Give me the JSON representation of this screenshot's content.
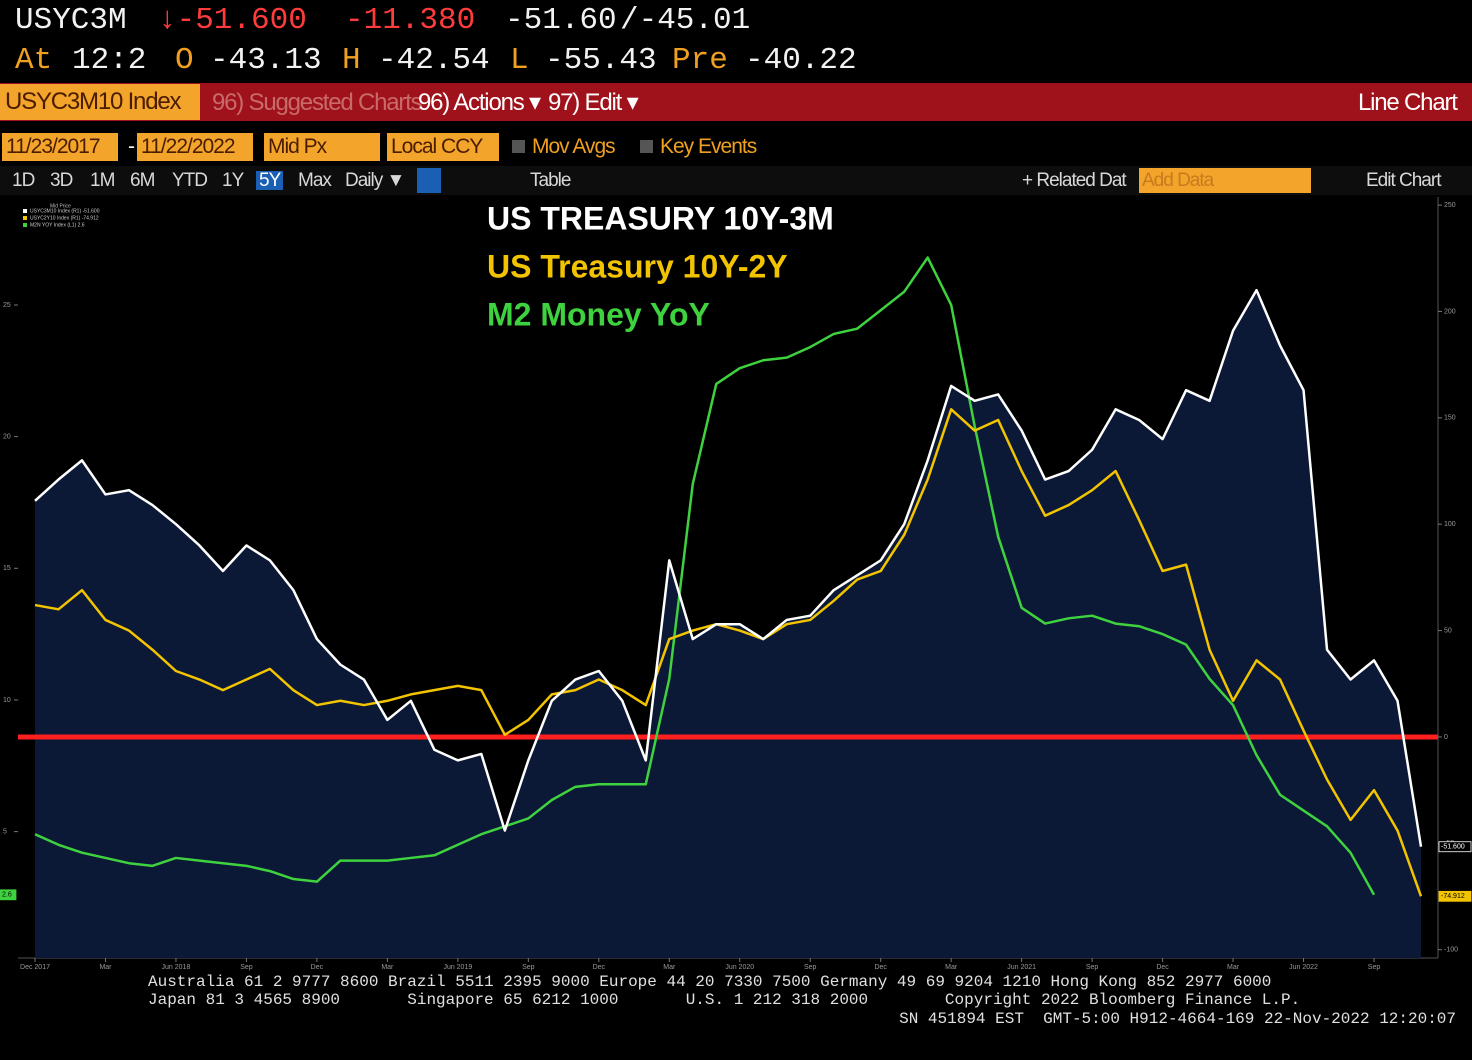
{
  "quote": {
    "ticker": "USYC3M",
    "last": "↓-51.600",
    "change": "-11.380",
    "bid": "-51.60",
    "ask": "/-45.01"
  },
  "quote_details": [
    {
      "label": "At",
      "value": "12:2"
    },
    {
      "label": "O",
      "value": "-43.13"
    },
    {
      "label": "H",
      "value": "-42.54"
    },
    {
      "label": "L",
      "value": "-55.43"
    },
    {
      "label": "Pre",
      "value": "-40.22"
    }
  ],
  "toolbar": {
    "security": "USYC3M10 Index",
    "suggested": "96) Suggested Charts",
    "actions": "96) Actions ▾",
    "edit": "97) Edit ▾",
    "view": "Line Chart"
  },
  "controls": {
    "start_date": "11/23/2017",
    "separator": "-",
    "end_date": "11/22/2022",
    "price": "Mid Px",
    "currency": "Local CCY",
    "mov_avgs": "Mov Avgs",
    "key_events": "Key Events"
  },
  "periods": [
    "1D",
    "3D",
    "1M",
    "6M",
    "YTD",
    "1Y",
    "5Y",
    "Max"
  ],
  "active_period": "5Y",
  "frequency": "Daily ▼",
  "table_button": "Table",
  "related": "+ Related Dat",
  "add_data": "Add Data",
  "edit_chart": "Edit Chart",
  "footer": [
    "Australia 61 2 9777 8600 Brazil 5511 2395 9000 Europe 44 20 7330 7500 Germany 49 69 9204 1210 Hong Kong 852 2977 6000",
    "Japan 81 3 4565 8900       Singapore 65 6212 1000       U.S. 1 212 318 2000        Copyright 2022 Bloomberg Finance L.P.",
    "SN 451894 EST  GMT-5:00 H912-4664-169 22-Nov-2022 12:20:07"
  ],
  "chart_data": {
    "type": "line",
    "legend_title": "Mid Price",
    "legend_entries": [
      "USYC3M10 Index (R1) -51.600",
      "USYC2Y10 Index (R1) -74.912",
      "M2N YOY Index (L1) 2.6"
    ],
    "x": [
      "2017-12",
      "2018-01",
      "2018-02",
      "2018-03",
      "2018-04",
      "2018-05",
      "2018-06",
      "2018-07",
      "2018-08",
      "2018-09",
      "2018-10",
      "2018-11",
      "2018-12",
      "2019-01",
      "2019-02",
      "2019-03",
      "2019-04",
      "2019-05",
      "2019-06",
      "2019-07",
      "2019-08",
      "2019-09",
      "2019-10",
      "2019-11",
      "2019-12",
      "2020-01",
      "2020-02",
      "2020-03",
      "2020-04",
      "2020-05",
      "2020-06",
      "2020-07",
      "2020-08",
      "2020-09",
      "2020-10",
      "2020-11",
      "2020-12",
      "2021-01",
      "2021-02",
      "2021-03",
      "2021-04",
      "2021-05",
      "2021-06",
      "2021-07",
      "2021-08",
      "2021-09",
      "2021-10",
      "2021-11",
      "2021-12",
      "2022-01",
      "2022-02",
      "2022-03",
      "2022-04",
      "2022-05",
      "2022-06",
      "2022-07",
      "2022-08",
      "2022-09",
      "2022-10",
      "2022-11"
    ],
    "series": [
      {
        "name": "US TREASURY 10Y-3M",
        "color": "#ffffff",
        "fill": "#0b1836",
        "axis": "y2",
        "last_label": "-51.600",
        "values": [
          111,
          121,
          130,
          114,
          116,
          109,
          100,
          90,
          78,
          90,
          83,
          69,
          46,
          34,
          27,
          8,
          17,
          -6,
          -11,
          -8,
          -44,
          -11,
          17,
          27,
          31,
          17,
          -11,
          83,
          46,
          53,
          53,
          46,
          55,
          57,
          69,
          76,
          83,
          100,
          130,
          165,
          158,
          161,
          144,
          121,
          125,
          135,
          154,
          149,
          140,
          163,
          158,
          191,
          210,
          184,
          163,
          41,
          27,
          36,
          17,
          -51.6
        ]
      },
      {
        "name": "US Treasury 10Y-2Y",
        "color": "#f2c400",
        "axis": "y2",
        "last_label": "-74.912",
        "values": [
          62,
          60,
          69,
          55,
          50,
          41,
          31,
          27,
          22,
          27,
          32,
          22,
          15,
          17,
          15,
          17,
          20,
          22,
          24,
          22,
          1,
          8,
          20,
          22,
          27,
          22,
          15,
          46,
          50,
          53,
          50,
          46,
          53,
          55,
          64,
          74,
          78,
          95,
          121,
          154,
          144,
          149,
          125,
          104,
          109,
          116,
          125,
          102,
          78,
          81,
          41,
          17,
          36,
          27,
          3,
          -20,
          -39,
          -25,
          -44,
          -74.912
        ]
      },
      {
        "name": "M2 Money YoY",
        "color": "#3fd23f",
        "axis": "y",
        "last_label": "2.6",
        "values": [
          4.9,
          4.5,
          4.2,
          4.0,
          3.8,
          3.7,
          4.0,
          3.9,
          3.8,
          3.7,
          3.5,
          3.2,
          3.1,
          3.9,
          3.9,
          3.9,
          4.0,
          4.1,
          4.5,
          4.9,
          5.2,
          5.5,
          6.2,
          6.7,
          6.8,
          6.8,
          6.8,
          10.8,
          18.2,
          22.0,
          22.6,
          22.9,
          23.0,
          23.4,
          23.9,
          24.1,
          24.8,
          25.5,
          26.8,
          25.0,
          20.4,
          16.2,
          13.5,
          12.9,
          13.1,
          13.2,
          12.9,
          12.8,
          12.5,
          12.1,
          10.8,
          9.8,
          7.9,
          6.4,
          5.8,
          5.2,
          4.2,
          2.6,
          null,
          null
        ]
      }
    ],
    "ylim": [
      0.2,
      29.1
    ],
    "yticks": [
      5,
      10,
      15,
      20,
      25
    ],
    "y2lim": [
      -103.9,
      253.8
    ],
    "y2ticks": [
      -100,
      -50,
      0,
      50,
      100,
      150,
      200,
      250
    ],
    "xticks": [
      {
        "value": "2017-12",
        "label": "Dec 2017"
      },
      {
        "value": "2018-03",
        "label": "Mar"
      },
      {
        "value": "2018-06",
        "label": "Jun 2018"
      },
      {
        "value": "2018-09",
        "label": "Sep"
      },
      {
        "value": "2018-12",
        "label": "Dec"
      },
      {
        "value": "2019-03",
        "label": "Mar"
      },
      {
        "value": "2019-06",
        "label": "Jun 2019"
      },
      {
        "value": "2019-09",
        "label": "Sep"
      },
      {
        "value": "2019-12",
        "label": "Dec"
      },
      {
        "value": "2020-03",
        "label": "Mar"
      },
      {
        "value": "2020-06",
        "label": "Jun 2020"
      },
      {
        "value": "2020-09",
        "label": "Sep"
      },
      {
        "value": "2020-12",
        "label": "Dec"
      },
      {
        "value": "2021-03",
        "label": "Mar"
      },
      {
        "value": "2021-06",
        "label": "Jun 2021"
      },
      {
        "value": "2021-09",
        "label": "Sep"
      },
      {
        "value": "2021-12",
        "label": "Dec"
      },
      {
        "value": "2022-03",
        "label": "Mar"
      },
      {
        "value": "2022-06",
        "label": "Jun 2022"
      },
      {
        "value": "2022-09",
        "label": "Sep"
      }
    ],
    "reference_line": {
      "value": 0,
      "axis": "y2",
      "color": "#ff1f1f"
    },
    "grid": false
  }
}
